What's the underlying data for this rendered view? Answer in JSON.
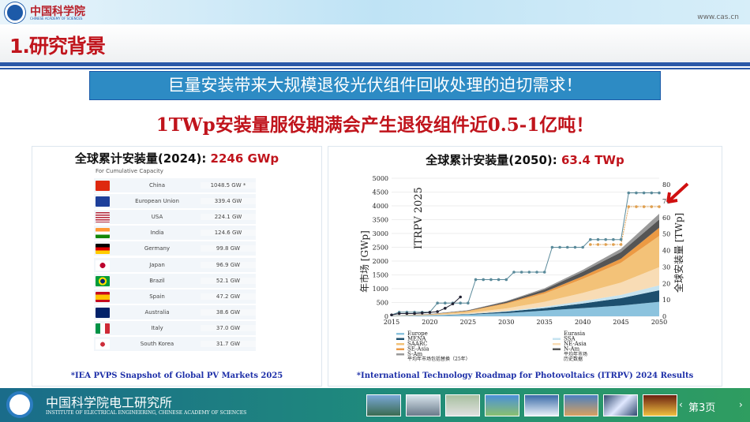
{
  "header": {
    "org_name": "中国科学院",
    "org_name_en": "CHINESE ACADEMY OF SCIENCES",
    "url": "www.cas.cn"
  },
  "slide": {
    "title": "1.研究背景",
    "banner": "巨量安装带来大规模退役光伏组件回收处理的迫切需求！",
    "subtitle": "1TWp安装量服役期满会产生退役组件近0.5-1亿吨！"
  },
  "left_panel": {
    "title_prefix": "全球累计安装量(2024): ",
    "title_value": "2246 GWp",
    "caption": "For Cumulative Capacity",
    "rows": [
      {
        "country": "China",
        "value": "1048.5 GW *",
        "flag": "china"
      },
      {
        "country": "European Union",
        "value": "339.4 GW",
        "flag": "eu"
      },
      {
        "country": "USA",
        "value": "224.1 GW",
        "flag": "usa"
      },
      {
        "country": "India",
        "value": "124.6 GW",
        "flag": "india"
      },
      {
        "country": "Germany",
        "value": "99.8 GW",
        "flag": "germany"
      },
      {
        "country": "Japan",
        "value": "96.9 GW",
        "flag": "japan"
      },
      {
        "country": "Brazil",
        "value": "52.1 GW",
        "flag": "brazil"
      },
      {
        "country": "Spain",
        "value": "47.2 GW",
        "flag": "spain"
      },
      {
        "country": "Australia",
        "value": "38.6 GW",
        "flag": "australia"
      },
      {
        "country": "Italy",
        "value": "37.0 GW",
        "flag": "italy"
      },
      {
        "country": "South Korea",
        "value": "31.7 GW",
        "flag": "south-korea"
      }
    ],
    "source": "*IEA PVPS Snapshot of Global PV Markets 2025"
  },
  "right_panel": {
    "title_prefix": "全球累计安装量(2050): ",
    "title_value": "63.4 TWp",
    "source": "*International Technology Roadmap for Photovoltaics (ITRPV) 2024 Results"
  },
  "chart_data": {
    "type": "area",
    "watermark": "ITRPV 2025",
    "ylabel_left": "年市场 [GWp]",
    "ylabel_right": "全球安装量 [TWp]",
    "ylim_left": [
      0,
      5000
    ],
    "ylim_right": [
      0,
      80
    ],
    "xlim": [
      2015,
      2050
    ],
    "x_ticks": [
      "2015",
      "2020",
      "2025",
      "2030",
      "2035",
      "2040",
      "2045",
      "2050"
    ],
    "y_ticks_left": [
      "0",
      "500",
      "1000",
      "1500",
      "2000",
      "2500",
      "3000",
      "3500",
      "4000",
      "4500",
      "5000"
    ],
    "y_ticks_right": [
      "0",
      "10",
      "20",
      "30",
      "40",
      "50",
      "60",
      "70",
      "80"
    ],
    "grid": true,
    "x": [
      2015,
      2020,
      2025,
      2030,
      2035,
      2040,
      2045,
      2050
    ],
    "stacked_series": [
      {
        "name": "Europe",
        "color": "#8cc3de",
        "values": [
          0.2,
          0.5,
          1,
          2,
          3.5,
          5,
          6.5,
          8.8
        ]
      },
      {
        "name": "MENA",
        "color": "#1d4f6e",
        "values": [
          0,
          0.1,
          0.3,
          0.8,
          1.5,
          2.8,
          4.5,
          7
        ]
      },
      {
        "name": "SSA",
        "color": "#c5e3f0",
        "values": [
          0,
          0.05,
          0.2,
          0.4,
          0.8,
          1.4,
          2,
          3
        ]
      },
      {
        "name": "NE-Asia",
        "color": "#f8dcb5",
        "values": [
          0,
          0.2,
          0.6,
          1.6,
          3,
          5,
          7.5,
          11
        ]
      },
      {
        "name": "SAARC",
        "color": "#f3c278",
        "values": [
          0.1,
          0.3,
          1,
          2.8,
          5,
          8.5,
          12,
          19
        ]
      },
      {
        "name": "SE-Asia",
        "color": "#ec9a43",
        "values": [
          0,
          0.05,
          0.2,
          0.5,
          1,
          1.6,
          2.5,
          5
        ]
      },
      {
        "name": "N-Am",
        "color": "#555555",
        "values": [
          0.1,
          0.2,
          0.3,
          0.8,
          1.5,
          2.7,
          4,
          5
        ]
      },
      {
        "name": "S-Am",
        "color": "#9a9a9a",
        "values": [
          0,
          0.05,
          0.1,
          0.3,
          0.7,
          1.2,
          2,
          3.5
        ]
      }
    ],
    "legend_extra": [
      "Eurasia",
      "平均年市场包括替换（25年）",
      "平均年市场",
      "历史数据"
    ],
    "market_incl_replacement": {
      "name": "平均年市场包括替换（25年）",
      "x": [
        2015,
        2016,
        2017,
        2018,
        2019,
        2020,
        2021,
        2022,
        2023,
        2024,
        2025,
        2026,
        2027,
        2028,
        2029,
        2030,
        2031,
        2032,
        2033,
        2034,
        2035,
        2036,
        2037,
        2038,
        2039,
        2040,
        2041,
        2042,
        2043,
        2044,
        2045,
        2046,
        2047,
        2048,
        2049,
        2050
      ],
      "values": [
        50,
        150,
        150,
        150,
        150,
        150,
        480,
        480,
        480,
        480,
        480,
        1330,
        1330,
        1330,
        1330,
        1330,
        1600,
        1600,
        1600,
        1600,
        1600,
        2500,
        2500,
        2500,
        2500,
        2500,
        2780,
        2780,
        2780,
        2780,
        2780,
        4470,
        4470,
        4470,
        4470,
        4470
      ]
    },
    "market_avg": {
      "name": "平均年市场",
      "x": [
        2041,
        2042,
        2043,
        2044,
        2045,
        2046,
        2047,
        2048,
        2049,
        2050
      ],
      "values": [
        2600,
        2600,
        2600,
        2600,
        2600,
        3970,
        3970,
        3970,
        3970,
        3970
      ]
    },
    "historical": {
      "name": "历史数据",
      "x": [
        2015,
        2016,
        2017,
        2018,
        2019,
        2020,
        2021,
        2022,
        2023,
        2024
      ],
      "values": [
        50,
        100,
        100,
        100,
        120,
        140,
        170,
        290,
        450,
        700
      ]
    }
  },
  "footer": {
    "institute": "中国科学院电工研究所",
    "institute_en": "INSTITUTE OF ELECTRICAL ENGINEERING, CHINESE ACADEMY OF SCIENCES",
    "page": "第3页",
    "prev": "‹",
    "next": "›"
  }
}
